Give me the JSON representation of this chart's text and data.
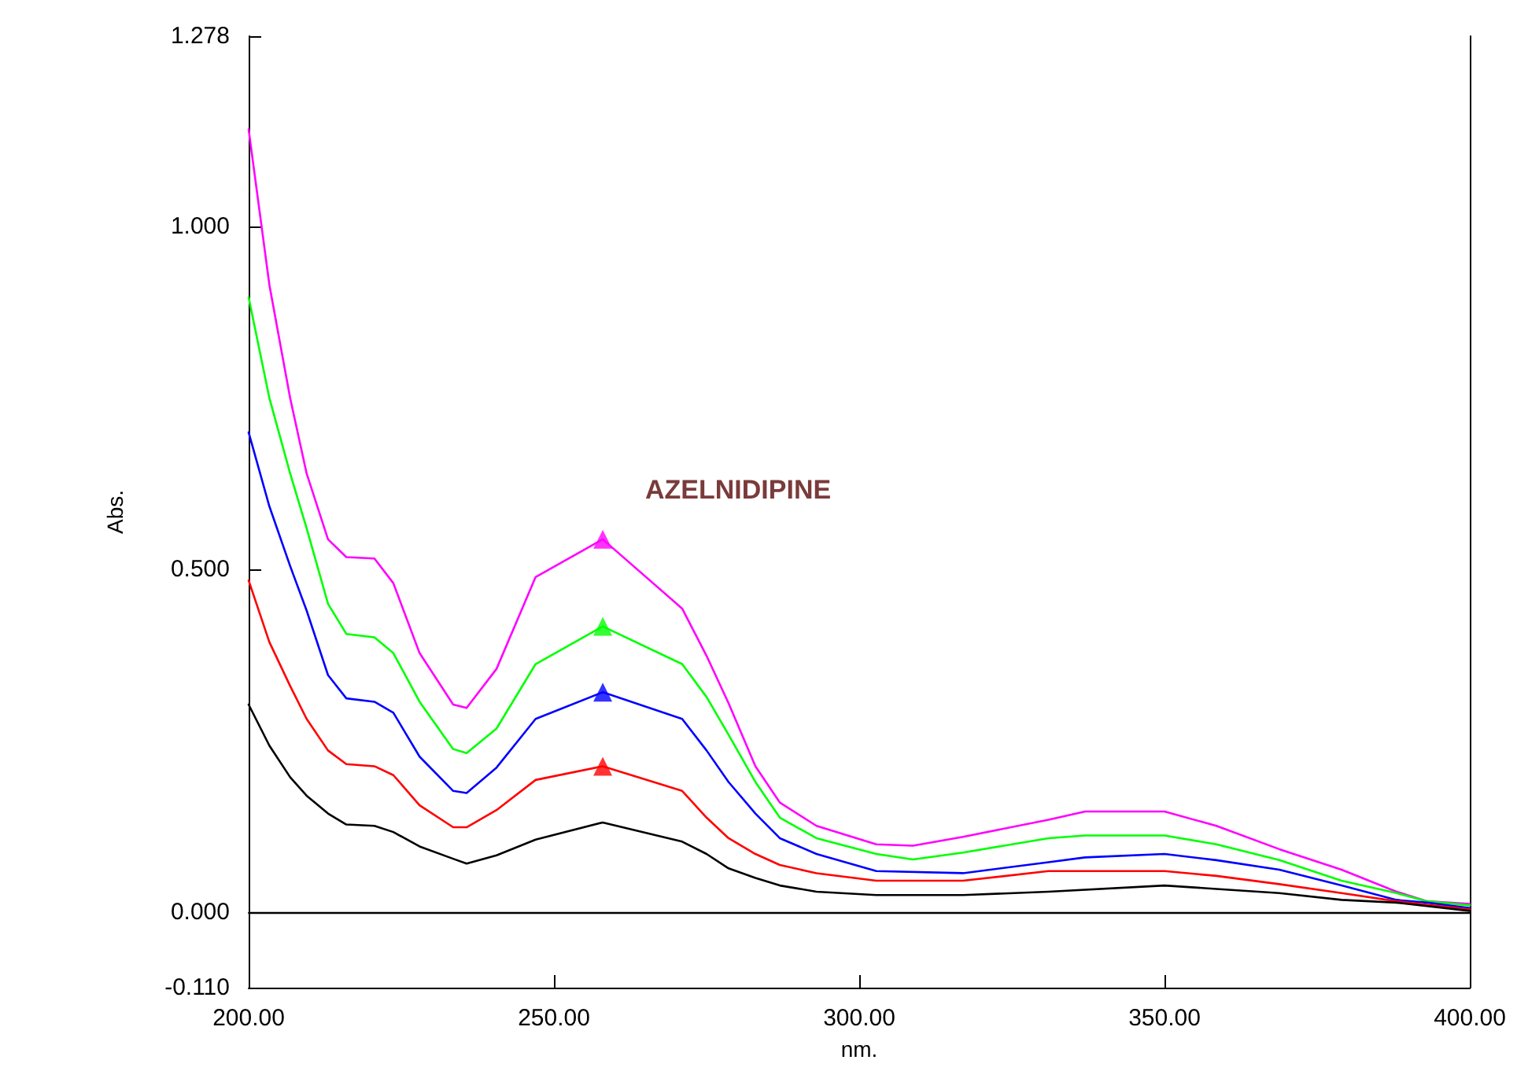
{
  "chart_data": {
    "type": "line",
    "xlabel": "nm.",
    "ylabel": "Abs.",
    "annotations": [
      "AZELNIDIPINE"
    ],
    "xlim": [
      200,
      400
    ],
    "xticks": [
      {
        "value": 200,
        "label": "200.00"
      },
      {
        "value": 250,
        "label": "250.00"
      },
      {
        "value": 300,
        "label": "300.00"
      },
      {
        "value": 350,
        "label": "350.00"
      },
      {
        "value": 400,
        "label": "400.00"
      }
    ],
    "ylim": [
      -0.11,
      1.278
    ],
    "yticks": [
      {
        "value": -0.11,
        "label": "-0.110"
      },
      {
        "value": 0,
        "label": "0.000"
      },
      {
        "value": 0.5,
        "label": "0.500"
      },
      {
        "value": 1,
        "label": "1.000"
      },
      {
        "value": 1.278,
        "label": "1.278"
      }
    ],
    "grid": false,
    "marker": "none",
    "line_style": "solid",
    "ref_lines": [
      {
        "axis": "y",
        "value": 0,
        "color": "#000000"
      }
    ],
    "series": [
      {
        "color": "#ff00ff",
        "x": [
          200,
          203.4,
          206.8,
          209.5,
          213,
          216,
          220.6,
          223.7,
          228,
          233.5,
          235.7,
          240.6,
          247,
          258,
          271,
          275,
          278.6,
          283,
          287,
          293,
          302.8,
          308.8,
          317,
          331,
          337,
          350,
          358.5,
          368.8,
          379,
          388,
          393,
          400
        ],
        "values": [
          1.142,
          0.915,
          0.75,
          0.64,
          0.544,
          0.518,
          0.516,
          0.48,
          0.378,
          0.303,
          0.298,
          0.355,
          0.489,
          0.544,
          0.443,
          0.374,
          0.305,
          0.213,
          0.16,
          0.126,
          0.099,
          0.097,
          0.11,
          0.135,
          0.147,
          0.147,
          0.126,
          0.092,
          0.062,
          0.03,
          0.016,
          0.012
        ]
      },
      {
        "color": "#00ff00",
        "x": [
          200,
          203.4,
          206.8,
          209.5,
          213,
          216,
          220.6,
          223.7,
          228,
          233.5,
          235.7,
          240.6,
          247,
          258,
          271,
          275,
          278.6,
          283,
          287,
          293,
          302.8,
          308.8,
          317,
          331,
          337,
          350,
          358.5,
          368.8,
          379,
          388,
          393,
          400
        ],
        "values": [
          0.897,
          0.75,
          0.64,
          0.56,
          0.45,
          0.406,
          0.401,
          0.378,
          0.307,
          0.238,
          0.232,
          0.268,
          0.362,
          0.417,
          0.362,
          0.314,
          0.259,
          0.19,
          0.138,
          0.108,
          0.085,
          0.077,
          0.087,
          0.108,
          0.112,
          0.112,
          0.099,
          0.076,
          0.046,
          0.028,
          0.016,
          0.01
        ]
      },
      {
        "color": "#0000ff",
        "x": [
          200,
          203.4,
          206.8,
          209.5,
          213,
          216,
          220.6,
          223.7,
          228,
          233.5,
          235.7,
          240.6,
          247,
          258,
          271,
          275,
          278.6,
          283,
          287,
          293,
          302.8,
          317,
          331,
          337,
          350,
          358.5,
          368.8,
          379,
          388,
          393,
          400
        ],
        "values": [
          0.7,
          0.592,
          0.505,
          0.44,
          0.346,
          0.312,
          0.307,
          0.291,
          0.227,
          0.177,
          0.174,
          0.211,
          0.282,
          0.321,
          0.282,
          0.236,
          0.19,
          0.144,
          0.108,
          0.085,
          0.06,
          0.057,
          0.073,
          0.08,
          0.085,
          0.076,
          0.062,
          0.039,
          0.018,
          0.014,
          0.006
        ]
      },
      {
        "color": "#ff0000",
        "x": [
          200,
          203.4,
          206.8,
          209.5,
          213,
          216,
          220.6,
          223.7,
          228,
          233.5,
          235.7,
          240.6,
          247,
          258,
          271,
          275,
          278.6,
          283,
          287,
          293,
          302.8,
          317,
          331,
          350,
          358.5,
          368.8,
          379,
          388,
          400
        ],
        "values": [
          0.484,
          0.394,
          0.33,
          0.282,
          0.236,
          0.216,
          0.213,
          0.2,
          0.156,
          0.124,
          0.124,
          0.149,
          0.193,
          0.213,
          0.177,
          0.138,
          0.108,
          0.085,
          0.069,
          0.057,
          0.046,
          0.046,
          0.06,
          0.06,
          0.053,
          0.041,
          0.028,
          0.016,
          0.004
        ]
      },
      {
        "color": "#000000",
        "x": [
          200,
          203.4,
          206.8,
          209.5,
          213,
          216,
          220.6,
          223.7,
          228,
          233.5,
          235.7,
          240.6,
          247,
          258,
          271,
          275,
          278.6,
          283,
          287,
          293,
          302.8,
          317,
          331,
          350,
          358.5,
          368.8,
          379,
          388,
          400
        ],
        "values": [
          0.303,
          0.243,
          0.197,
          0.17,
          0.144,
          0.128,
          0.126,
          0.117,
          0.096,
          0.078,
          0.071,
          0.083,
          0.106,
          0.131,
          0.103,
          0.085,
          0.064,
          0.05,
          0.039,
          0.03,
          0.025,
          0.025,
          0.03,
          0.039,
          0.034,
          0.028,
          0.018,
          0.014,
          0.002
        ]
      },
      {
        "type": "scatter",
        "marker": "triangle",
        "color": "#ff00ff",
        "x": [
          258
        ],
        "values": [
          0.544
        ]
      },
      {
        "type": "scatter",
        "marker": "triangle",
        "color": "#00ff00",
        "x": [
          258
        ],
        "values": [
          0.417
        ]
      },
      {
        "type": "scatter",
        "marker": "triangle",
        "color": "#0000ff",
        "x": [
          258
        ],
        "values": [
          0.321
        ]
      },
      {
        "type": "scatter",
        "marker": "triangle",
        "color": "#ff0000",
        "x": [
          258
        ],
        "values": [
          0.213
        ]
      }
    ]
  }
}
